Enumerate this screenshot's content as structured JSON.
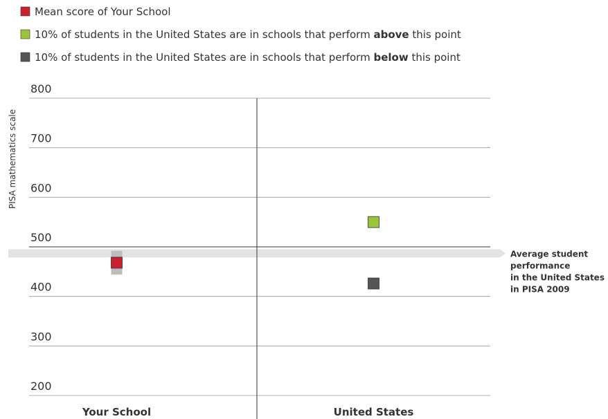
{
  "chart_data": {
    "type": "dot",
    "y_label": "PISA mathematics scale",
    "categories": [
      "Your School",
      "United States"
    ],
    "category_colors": [
      "#9b3327",
      "#222222"
    ],
    "ylim": [
      200,
      800
    ],
    "yticks": [
      200,
      300,
      400,
      500,
      600,
      700,
      800
    ],
    "grid": true,
    "series": [
      {
        "name_parts": [
          {
            "text": "Mean score of Your School",
            "bold": false
          }
        ],
        "color": "#c8202f",
        "values": [
          468,
          null
        ],
        "errors": [
          24,
          null
        ],
        "error_color": "#bdbdbd"
      },
      {
        "name_parts": [
          {
            "text": "10% of students in the United States are in schools that perform ",
            "bold": false
          },
          {
            "text": "above",
            "bold": true
          },
          {
            "text": " this point",
            "bold": false
          }
        ],
        "color": "#9ac53b",
        "values": [
          null,
          550
        ]
      },
      {
        "name_parts": [
          {
            "text": "10% of students in the United States are in schools that perform ",
            "bold": false
          },
          {
            "text": "below",
            "bold": true
          },
          {
            "text": " this point",
            "bold": false
          }
        ],
        "color": "#555555",
        "values": [
          null,
          426
        ]
      }
    ],
    "reference": {
      "value": 487,
      "color": "#e3e3e3",
      "label_lines": [
        "Average student",
        "performance",
        "in the United States",
        "in PISA 2009"
      ]
    }
  }
}
